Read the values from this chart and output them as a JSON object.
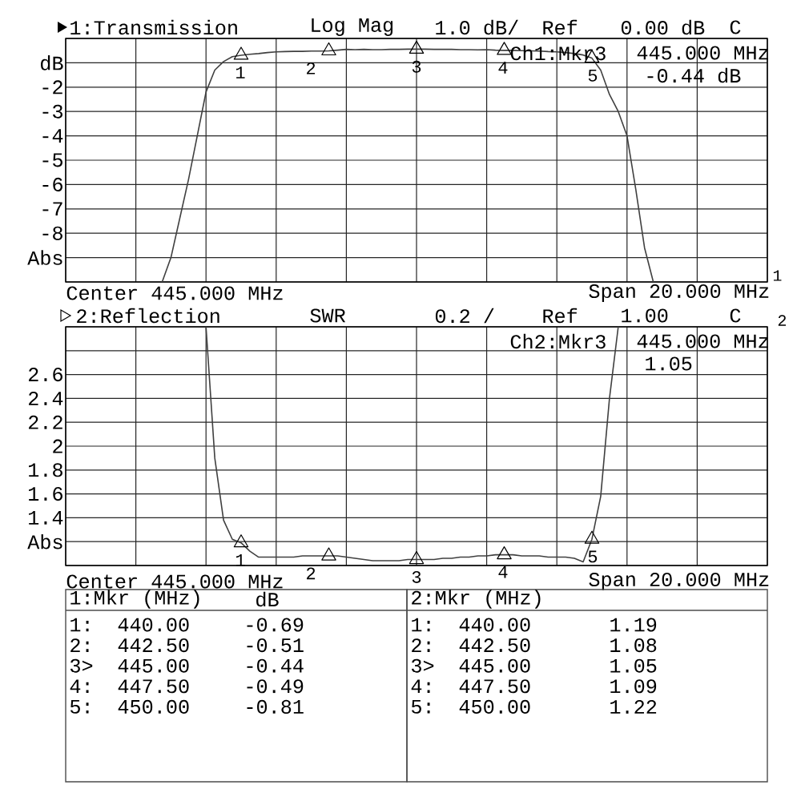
{
  "chart_data": [
    {
      "type": "line",
      "title": "1:Transmission",
      "marker": "none",
      "grid": true,
      "tick_labels": "y",
      "categories": [
        null,
        null,
        null,
        null,
        null,
        null,
        null,
        null,
        null,
        null,
        null,
        null,
        null,
        null,
        null,
        null,
        null,
        null,
        null,
        null,
        null,
        null,
        null,
        null,
        null,
        null,
        null,
        null,
        null,
        null,
        null,
        null,
        null,
        null,
        null,
        null,
        null,
        null,
        null,
        null,
        null,
        null,
        null,
        null,
        null,
        null,
        null,
        null,
        null,
        null,
        null,
        null,
        null,
        null,
        null,
        null,
        null,
        null,
        null,
        null,
        null,
        null,
        null,
        null,
        null,
        null,
        null,
        null,
        null,
        null,
        null,
        null,
        null,
        null,
        null,
        null,
        null,
        null,
        null,
        null,
        null
      ],
      "ylim": [
        -10,
        0
      ],
      "yticks": [
        {
          "value": -10,
          "label": null
        },
        {
          "value": -9,
          "label": "Abs"
        },
        -8,
        -7,
        -6,
        -5,
        -4,
        -3,
        -2,
        {
          "value": -1,
          "label": "dB"
        },
        {
          "value": 0,
          "label": null
        }
      ],
      "series": [
        {
          "color": "#404040",
          "values": [
            null,
            null,
            null,
            null,
            null,
            null,
            null,
            null,
            null,
            null,
            null,
            -10,
            -9,
            -7.4,
            -5.8,
            -4,
            -2.2,
            -1.3,
            -0.95,
            -0.75,
            -0.69,
            -0.65,
            -0.62,
            -0.58,
            -0.55,
            -0.54,
            -0.53,
            -0.53,
            -0.52,
            -0.52,
            -0.51,
            -0.48,
            -0.45,
            -0.46,
            -0.45,
            -0.46,
            -0.46,
            -0.45,
            -0.45,
            -0.44,
            -0.44,
            -0.44,
            -0.45,
            -0.45,
            -0.45,
            -0.46,
            -0.46,
            -0.47,
            -0.46,
            -0.48,
            -0.49,
            -0.49,
            -0.5,
            -0.51,
            -0.52,
            -0.54,
            -0.55,
            -0.58,
            -0.62,
            -0.68,
            -0.81,
            -1.3,
            -2.3,
            -3.0,
            -4.0,
            -6.2,
            -8.6,
            -10,
            null,
            null,
            null,
            null,
            null,
            null,
            null,
            null,
            null,
            null,
            null,
            null,
            null
          ]
        },
        {
          "type": "scatter",
          "marker": "triangle",
          "color": "#000000",
          "values": [
            null,
            null,
            null,
            null,
            null,
            null,
            null,
            null,
            null,
            null,
            null,
            null,
            null,
            null,
            null,
            null,
            null,
            null,
            null,
            null,
            -0.69,
            null,
            null,
            null,
            null,
            null,
            null,
            null,
            null,
            null,
            -0.51,
            null,
            null,
            null,
            null,
            null,
            null,
            null,
            null,
            null,
            -0.44,
            null,
            null,
            null,
            null,
            null,
            null,
            null,
            null,
            null,
            -0.49,
            null,
            null,
            null,
            null,
            null,
            null,
            null,
            null,
            null,
            -0.81,
            null,
            null,
            null,
            null,
            null,
            null,
            null,
            null,
            null,
            null,
            null,
            null,
            null,
            null,
            null,
            null,
            null,
            null,
            null,
            null
          ]
        }
      ],
      "annotations": [
        "Log Mag",
        "1.0 dB/",
        "Ref",
        "0.00 dB",
        "C",
        "Ch1:Mkr3",
        "445.000 MHz",
        "-0.44 dB",
        "Center 445.000 MHz",
        "Span 20.000 MHz",
        "1",
        "1:Mkr (MHz)",
        "dB",
        "1:",
        "440.00",
        "-0.69",
        "2:",
        "442.50",
        "-0.51",
        "3>",
        "445.00",
        "-0.44",
        "4:",
        "447.50",
        "-0.49",
        "5:",
        "450.00",
        "-0.81",
        {
          "text": "1",
          "y": -0.69
        },
        {
          "text": "2",
          "y": -0.51
        },
        {
          "text": "3",
          "y": -0.44
        },
        {
          "text": "4",
          "y": -0.49
        },
        {
          "text": "5",
          "y": -0.81
        }
      ]
    },
    {
      "type": "line",
      "title": "2:Reflection",
      "marker": "none",
      "grid": true,
      "tick_labels": "y",
      "categories": [
        null,
        null,
        null,
        null,
        null,
        null,
        null,
        null,
        null,
        null,
        null,
        null,
        null,
        null,
        null,
        null,
        null,
        null,
        null,
        null,
        null,
        null,
        null,
        null,
        null,
        null,
        null,
        null,
        null,
        null,
        null,
        null,
        null,
        null,
        null,
        null,
        null,
        null,
        null,
        null,
        null,
        null,
        null,
        null,
        null,
        null,
        null,
        null,
        null,
        null,
        null,
        null,
        null,
        null,
        null,
        null,
        null,
        null,
        null,
        null,
        null,
        null,
        null,
        null,
        null,
        null,
        null,
        null,
        null,
        null,
        null,
        null,
        null,
        null,
        null,
        null,
        null,
        null,
        null,
        null,
        null
      ],
      "ylim": [
        1,
        3
      ],
      "yticks": [
        {
          "value": 1,
          "label": null
        },
        {
          "value": 1.2,
          "label": "Abs"
        },
        1.4,
        1.6,
        1.8,
        2,
        2.2,
        2.4,
        2.6,
        {
          "value": 2.8,
          "label": null
        },
        {
          "value": 3,
          "label": null
        }
      ],
      "series": [
        {
          "color": "#404040",
          "values": [
            null,
            null,
            null,
            null,
            null,
            null,
            null,
            null,
            null,
            null,
            null,
            null,
            null,
            null,
            null,
            null,
            3.0,
            1.9,
            1.38,
            1.22,
            1.19,
            1.12,
            1.07,
            1.07,
            1.07,
            1.07,
            1.07,
            1.08,
            1.08,
            1.08,
            1.08,
            1.08,
            1.07,
            1.06,
            1.05,
            1.04,
            1.04,
            1.04,
            1.04,
            1.05,
            1.05,
            1.05,
            1.05,
            1.06,
            1.06,
            1.07,
            1.07,
            1.08,
            1.08,
            1.09,
            1.09,
            1.09,
            1.08,
            1.08,
            1.08,
            1.07,
            1.07,
            1.07,
            1.06,
            1.03,
            1.22,
            1.58,
            2.4,
            3.0,
            null,
            null,
            null,
            null,
            null,
            null,
            null,
            null,
            null,
            null,
            null,
            null,
            null,
            null,
            null,
            null,
            null
          ]
        },
        {
          "type": "scatter",
          "marker": "triangle",
          "color": "#000000",
          "values": [
            null,
            null,
            null,
            null,
            null,
            null,
            null,
            null,
            null,
            null,
            null,
            null,
            null,
            null,
            null,
            null,
            null,
            null,
            null,
            null,
            1.19,
            null,
            null,
            null,
            null,
            null,
            null,
            null,
            null,
            null,
            1.08,
            null,
            null,
            null,
            null,
            null,
            null,
            null,
            null,
            null,
            1.05,
            null,
            null,
            null,
            null,
            null,
            null,
            null,
            null,
            null,
            1.09,
            null,
            null,
            null,
            null,
            null,
            null,
            null,
            null,
            null,
            1.22,
            null,
            null,
            null,
            null,
            null,
            null,
            null,
            null,
            null,
            null,
            null,
            null,
            null,
            null,
            null,
            null,
            null,
            null,
            null,
            null
          ]
        }
      ],
      "annotations": [
        "SWR",
        "0.2 /",
        "Ref",
        "1.00",
        "C",
        "Ch2:Mkr3",
        "445.000 MHz",
        "1.05",
        "Center 445.000 MHz",
        "Span 20.000 MHz",
        "2",
        "2:Mkr (MHz)",
        "1:",
        "440.00",
        "1.19",
        "2:",
        "442.50",
        "1.08",
        "3>",
        "445.00",
        "1.05",
        "4:",
        "447.50",
        "1.09",
        "5:",
        "450.00",
        "1.22",
        {
          "text": "1",
          "y": 1.19
        },
        {
          "text": "2",
          "y": 1.08
        },
        {
          "text": "3",
          "y": 1.05
        },
        {
          "text": "4",
          "y": 1.09
        },
        {
          "text": "5",
          "y": 1.22
        }
      ]
    }
  ]
}
